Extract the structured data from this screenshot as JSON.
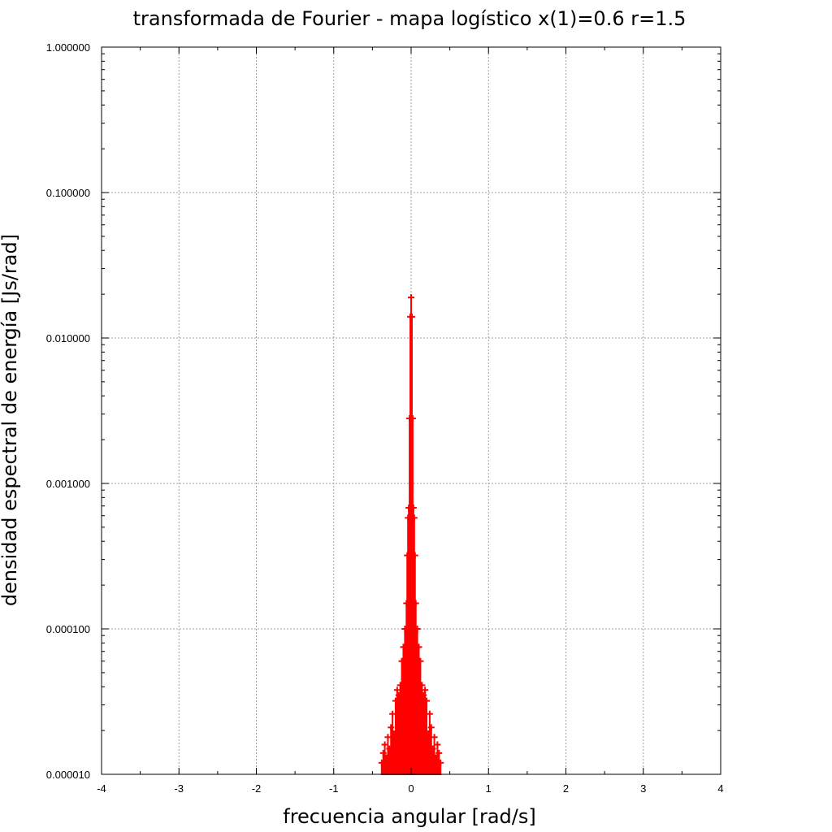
{
  "chart_data": {
    "type": "line",
    "title": "transformada de Fourier - mapa logístico x(1)=0.6   r=1.5",
    "xlabel": "frecuencia angular [rad/s]",
    "ylabel": "densidad espectral de energía [Js/rad]",
    "xlim": [
      -4,
      4
    ],
    "ylim": [
      1e-05,
      1
    ],
    "yscale": "log",
    "grid": true,
    "x_ticks": [
      -4,
      -3,
      -2,
      -1,
      0,
      1,
      2,
      3,
      4
    ],
    "x_tick_labels": [
      "-4",
      "-3",
      "-2",
      "-1",
      "0",
      "1",
      "2",
      "3",
      "4"
    ],
    "y_ticks": [
      1e-05,
      0.0001,
      0.001,
      0.01,
      0.1,
      1
    ],
    "y_tick_labels": [
      "0.000010",
      "0.000100",
      "0.001000",
      "0.010000",
      "0.100000",
      "1.000000"
    ],
    "series": [
      {
        "color": "#ff0000",
        "marker": "plus",
        "x": [
          -0.38,
          -0.36,
          -0.34,
          -0.32,
          -0.3,
          -0.28,
          -0.26,
          -0.24,
          -0.22,
          -0.2,
          -0.18,
          -0.16,
          -0.14,
          -0.12,
          -0.1,
          -0.08,
          -0.06,
          -0.05,
          -0.04,
          -0.03,
          -0.02,
          -0.01,
          0,
          0.01,
          0.02,
          0.03,
          0.04,
          0.05,
          0.06,
          0.08,
          0.1,
          0.12,
          0.14,
          0.16,
          0.18,
          0.2,
          0.22,
          0.24,
          0.26,
          0.28,
          0.3,
          0.32,
          0.34,
          0.36,
          0.38
        ],
        "y": [
          1.2e-05,
          1.4e-05,
          1.6e-05,
          1.3e-05,
          1.8e-05,
          1.5e-05,
          2.1e-05,
          2.6e-05,
          1.9e-05,
          3.2e-05,
          3.8e-05,
          3.5e-05,
          4.1e-05,
          6e-05,
          7.5e-05,
          0.0001,
          0.00015,
          0.00032,
          0.00058,
          0.00068,
          0.0028,
          0.014,
          0.019,
          0.014,
          0.0028,
          0.00068,
          0.00058,
          0.00032,
          0.00015,
          0.0001,
          7.5e-05,
          6e-05,
          4.1e-05,
          3.5e-05,
          3.8e-05,
          3.2e-05,
          1.9e-05,
          2.6e-05,
          2.1e-05,
          1.5e-05,
          1.8e-05,
          1.3e-05,
          1.6e-05,
          1.4e-05,
          1.2e-05
        ]
      }
    ]
  }
}
